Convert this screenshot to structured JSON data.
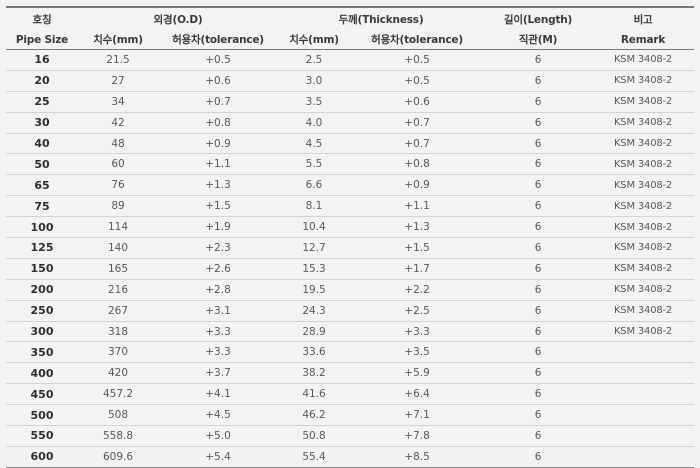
{
  "header": {
    "group_row": {
      "pipe": "호칭",
      "od": "외경(O.D)",
      "thickness": "두께(Thickness)",
      "length": "길이(Length)",
      "remark": "비고"
    },
    "sub_row": {
      "pipe": "Pipe Size",
      "od_dim": "치수(mm)",
      "od_tol": "허용차(tolerance)",
      "th_dim": "치수(mm)",
      "th_tol": "허용차(tolerance)",
      "length": "직관(M)",
      "remark": "Remark"
    }
  },
  "rows": [
    {
      "size": "16",
      "od": "21.5",
      "od_tol": "+0.5",
      "th": "2.5",
      "th_tol": "+0.5",
      "len": "6",
      "remark": "KSM 3408-2"
    },
    {
      "size": "20",
      "od": "27",
      "od_tol": "+0.6",
      "th": "3.0",
      "th_tol": "+0.5",
      "len": "6",
      "remark": "KSM 3408-2"
    },
    {
      "size": "25",
      "od": "34",
      "od_tol": "+0.7",
      "th": "3.5",
      "th_tol": "+0.6",
      "len": "6",
      "remark": "KSM 3408-2"
    },
    {
      "size": "30",
      "od": "42",
      "od_tol": "+0.8",
      "th": "4.0",
      "th_tol": "+0.7",
      "len": "6",
      "remark": "KSM 3408-2"
    },
    {
      "size": "40",
      "od": "48",
      "od_tol": "+0.9",
      "th": "4.5",
      "th_tol": "+0.7",
      "len": "6",
      "remark": "KSM 3408-2"
    },
    {
      "size": "50",
      "od": "60",
      "od_tol": "+1.1",
      "th": "5.5",
      "th_tol": "+0.8",
      "len": "6",
      "remark": "KSM 3408-2"
    },
    {
      "size": "65",
      "od": "76",
      "od_tol": "+1.3",
      "th": "6.6",
      "th_tol": "+0.9",
      "len": "6",
      "remark": "KSM 3408-2"
    },
    {
      "size": "75",
      "od": "89",
      "od_tol": "+1.5",
      "th": "8.1",
      "th_tol": "+1.1",
      "len": "6",
      "remark": "KSM 3408-2"
    },
    {
      "size": "100",
      "od": "114",
      "od_tol": "+1.9",
      "th": "10.4",
      "th_tol": "+1.3",
      "len": "6",
      "remark": "KSM 3408-2"
    },
    {
      "size": "125",
      "od": "140",
      "od_tol": "+2.3",
      "th": "12.7",
      "th_tol": "+1.5",
      "len": "6",
      "remark": "KSM 3408-2"
    },
    {
      "size": "150",
      "od": "165",
      "od_tol": "+2.6",
      "th": "15.3",
      "th_tol": "+1.7",
      "len": "6",
      "remark": "KSM 3408-2"
    },
    {
      "size": "200",
      "od": "216",
      "od_tol": "+2.8",
      "th": "19.5",
      "th_tol": "+2.2",
      "len": "6",
      "remark": "KSM 3408-2"
    },
    {
      "size": "250",
      "od": "267",
      "od_tol": "+3.1",
      "th": "24.3",
      "th_tol": "+2.5",
      "len": "6",
      "remark": "KSM 3408-2"
    },
    {
      "size": "300",
      "od": "318",
      "od_tol": "+3.3",
      "th": "28.9",
      "th_tol": "+3.3",
      "len": "6",
      "remark": "KSM 3408-2"
    },
    {
      "size": "350",
      "od": "370",
      "od_tol": "+3.3",
      "th": "33.6",
      "th_tol": "+3.5",
      "len": "6",
      "remark": ""
    },
    {
      "size": "400",
      "od": "420",
      "od_tol": "+3.7",
      "th": "38.2",
      "th_tol": "+5.9",
      "len": "6",
      "remark": ""
    },
    {
      "size": "450",
      "od": "457.2",
      "od_tol": "+4.1",
      "th": "41.6",
      "th_tol": "+6.4",
      "len": "6",
      "remark": ""
    },
    {
      "size": "500",
      "od": "508",
      "od_tol": "+4.5",
      "th": "46.2",
      "th_tol": "+7.1",
      "len": "6",
      "remark": ""
    },
    {
      "size": "550",
      "od": "558.8",
      "od_tol": "+5.0",
      "th": "50.8",
      "th_tol": "+7.8",
      "len": "6",
      "remark": ""
    },
    {
      "size": "600",
      "od": "609.6",
      "od_tol": "+5.4",
      "th": "55.4",
      "th_tol": "+8.5",
      "len": "6",
      "remark": ""
    }
  ]
}
